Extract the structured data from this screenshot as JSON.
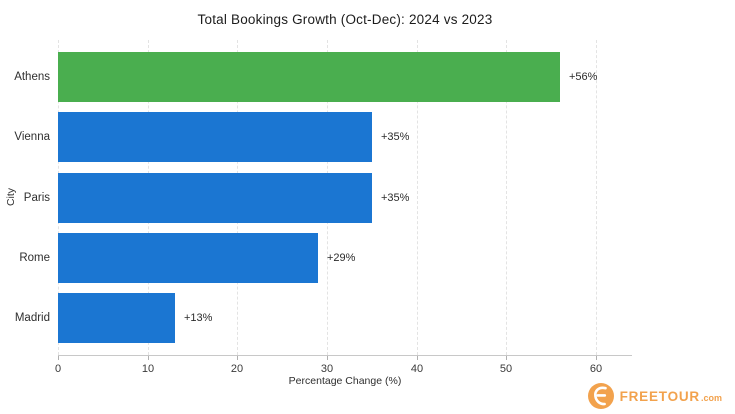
{
  "chart_data": {
    "type": "bar",
    "orientation": "horizontal",
    "title": "Total Bookings Growth (Oct-Dec): 2024 vs 2023",
    "xlabel": "Percentage Change (%)",
    "ylabel": "City",
    "categories": [
      "Athens",
      "Vienna",
      "Paris",
      "Rome",
      "Madrid"
    ],
    "values": [
      56,
      35,
      35,
      29,
      13
    ],
    "value_labels": [
      "+56%",
      "+35%",
      "+35%",
      "+29%",
      "+13%"
    ],
    "bar_colors": [
      "#4AAE4F",
      "#1B76D2",
      "#1B76D2",
      "#1B76D2",
      "#1B76D2"
    ],
    "xticks": [
      0,
      10,
      20,
      30,
      40,
      50,
      60
    ],
    "xlim": [
      0,
      64
    ],
    "grid": "vertical-dashed",
    "highlight_color": "#4AAE4F",
    "default_color": "#1B76D2"
  },
  "logo": {
    "brand": "FREETOUR",
    "suffix": ".com",
    "color": "#F2A24D"
  }
}
